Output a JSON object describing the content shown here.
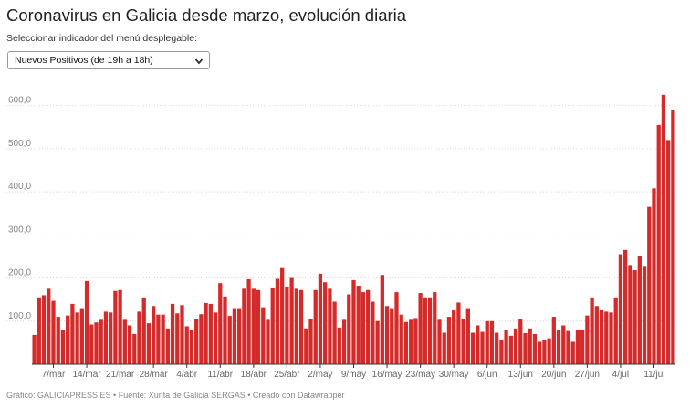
{
  "header": {
    "title": "Coronavirus en Galicia desde marzo, evolución diaria",
    "instruction": "Seleccionar indicador del menú desplegable:"
  },
  "dropdown": {
    "selected": "Nuevos Positivos (de 19h a 18h)"
  },
  "footer": {
    "credit": "Gráfico: GALICIAPRESS.ES • Fuente: Xunta de Galicia SERGAS • Creado con Datawrapper"
  },
  "colors": {
    "bar": "#d52a2a",
    "grid": "#d9d9d9",
    "axis": "#333333"
  },
  "chart_data": {
    "type": "bar",
    "title": "Coronavirus en Galicia desde marzo, evolución diaria",
    "series_name": "Nuevos Positivos (de 19h a 18h)",
    "ylim": [
      0,
      650
    ],
    "yticks": [
      100,
      200,
      300,
      400,
      500,
      600
    ],
    "ytick_labels": [
      "100,0",
      "200,0",
      "300,0",
      "400,0",
      "500,0",
      "600,0"
    ],
    "xtick_labels": [
      "7/mar",
      "14/mar",
      "21/mar",
      "28/mar",
      "4/abr",
      "11/abr",
      "18/abr",
      "25/abr",
      "2/may",
      "9/may",
      "16/may",
      "23/may",
      "30/may",
      "6/jun",
      "13/jun",
      "20/jun",
      "27/jun",
      "4/jul",
      "11/jul"
    ],
    "xtick_day_index": [
      4,
      11,
      18,
      25,
      32,
      39,
      46,
      53,
      60,
      67,
      74,
      81,
      88,
      95,
      102,
      109,
      116,
      123,
      130
    ],
    "grid": true,
    "values": [
      68,
      155,
      160,
      175,
      147,
      110,
      80,
      113,
      140,
      120,
      130,
      193,
      92,
      97,
      103,
      122,
      120,
      170,
      172,
      103,
      90,
      70,
      122,
      155,
      95,
      135,
      115,
      115,
      83,
      140,
      118,
      137,
      88,
      80,
      105,
      116,
      142,
      140,
      120,
      188,
      157,
      112,
      130,
      130,
      175,
      197,
      175,
      172,
      132,
      103,
      178,
      198,
      223,
      180,
      200,
      175,
      172,
      83,
      105,
      172,
      210,
      190,
      175,
      145,
      85,
      103,
      162,
      195,
      182,
      167,
      172,
      145,
      100,
      207,
      135,
      130,
      167,
      115,
      98,
      103,
      107,
      165,
      155,
      155,
      167,
      103,
      73,
      110,
      125,
      143,
      105,
      130,
      73,
      90,
      75,
      100,
      100,
      73,
      55,
      80,
      66,
      83,
      105,
      72,
      83,
      70,
      52,
      57,
      60,
      110,
      80,
      90,
      77,
      52,
      80,
      80,
      113,
      155,
      135,
      125,
      122,
      120,
      155,
      255,
      265,
      230,
      218,
      250,
      228,
      365,
      408,
      555,
      625,
      520,
      590
    ]
  }
}
